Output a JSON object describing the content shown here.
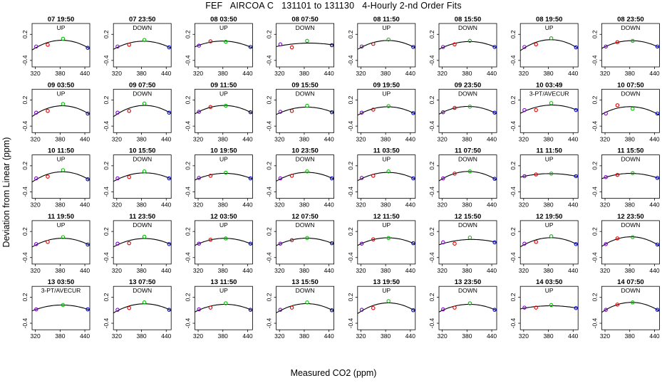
{
  "title": "FEF   AIRCOA C   131101 to 131130   4-Hourly 2-nd Order Fits",
  "xlabel": "Measured CO2 (ppm)",
  "ylabel": "Deviation from Linear (ppm)",
  "colors": {
    "point_low": "#7a00c8",
    "point_mid": "#e00000",
    "point_hi": "#00c000",
    "point_top": "#0000c8",
    "curve": "#000000"
  },
  "chart_data": {
    "type": "scatter",
    "layout": "5x8 small multiples",
    "xlim": [
      312,
      452
    ],
    "ylim": [
      -0.55,
      0.45
    ],
    "xticks": [
      320,
      380,
      440
    ],
    "yticks": [
      -0.4,
      0.2
    ],
    "panels": [
      {
        "title": "07 19:50",
        "label": "UP",
        "points": [
          [
            322,
            -0.08
          ],
          [
            350,
            -0.04
          ],
          [
            387,
            0.1
          ],
          [
            447,
            -0.11
          ]
        ]
      },
      {
        "title": "07 23:50",
        "label": "DOWN",
        "points": [
          [
            322,
            -0.08
          ],
          [
            350,
            -0.04
          ],
          [
            387,
            0.07
          ],
          [
            447,
            -0.1
          ]
        ]
      },
      {
        "title": "08 03:50",
        "label": "UP",
        "points": [
          [
            322,
            -0.06
          ],
          [
            350,
            0.04
          ],
          [
            387,
            0.03
          ],
          [
            447,
            -0.09
          ]
        ]
      },
      {
        "title": "08 07:50",
        "label": "DOWN",
        "points": [
          [
            322,
            -0.03
          ],
          [
            350,
            -0.1
          ],
          [
            387,
            0.05
          ],
          [
            447,
            -0.05
          ]
        ]
      },
      {
        "title": "08 11:50",
        "label": "UP",
        "points": [
          [
            322,
            -0.08
          ],
          [
            350,
            -0.02
          ],
          [
            387,
            0.08
          ],
          [
            447,
            -0.09
          ]
        ]
      },
      {
        "title": "08 15:50",
        "label": "DOWN",
        "points": [
          [
            322,
            -0.09
          ],
          [
            350,
            -0.03
          ],
          [
            387,
            0.05
          ],
          [
            447,
            -0.09
          ]
        ]
      },
      {
        "title": "08 19:50",
        "label": "UP",
        "points": [
          [
            322,
            -0.09
          ],
          [
            350,
            -0.03
          ],
          [
            387,
            0.11
          ],
          [
            447,
            -0.1
          ]
        ]
      },
      {
        "title": "08 23:50",
        "label": "DOWN",
        "points": [
          [
            322,
            -0.08
          ],
          [
            350,
            0.02
          ],
          [
            387,
            0.05
          ],
          [
            447,
            -0.08
          ]
        ]
      },
      {
        "title": "09 03:50",
        "label": "UP",
        "points": [
          [
            322,
            -0.09
          ],
          [
            350,
            -0.05
          ],
          [
            387,
            0.11
          ],
          [
            447,
            -0.11
          ]
        ]
      },
      {
        "title": "09 07:50",
        "label": "DOWN",
        "points": [
          [
            322,
            -0.09
          ],
          [
            350,
            -0.05
          ],
          [
            387,
            0.12
          ],
          [
            447,
            -0.09
          ]
        ]
      },
      {
        "title": "09 11:50",
        "label": "UP",
        "points": [
          [
            322,
            -0.07
          ],
          [
            350,
            0.04
          ],
          [
            387,
            0.07
          ],
          [
            447,
            -0.08
          ]
        ]
      },
      {
        "title": "09 15:50",
        "label": "DOWN",
        "points": [
          [
            322,
            -0.07
          ],
          [
            350,
            -0.05
          ],
          [
            387,
            0.07
          ],
          [
            447,
            -0.08
          ]
        ]
      },
      {
        "title": "09 19:50",
        "label": "UP",
        "points": [
          [
            322,
            -0.09
          ],
          [
            350,
            -0.02
          ],
          [
            387,
            0.06
          ],
          [
            447,
            -0.1
          ]
        ]
      },
      {
        "title": "09 23:50",
        "label": "DOWN",
        "points": [
          [
            322,
            -0.08
          ],
          [
            350,
            0.02
          ],
          [
            387,
            0.05
          ],
          [
            447,
            -0.09
          ]
        ]
      },
      {
        "title": "10 03:49",
        "label": "3-PT/AVECUR",
        "points": [
          [
            322,
            -0.03
          ],
          [
            350,
            -0.03
          ],
          [
            387,
            0.13
          ],
          [
            447,
            -0.03
          ]
        ]
      },
      {
        "title": "10 07:50",
        "label": "DOWN",
        "points": [
          [
            322,
            -0.11
          ],
          [
            350,
            0.08
          ],
          [
            387,
            0.0
          ],
          [
            447,
            -0.11
          ]
        ]
      },
      {
        "title": "10 11:50",
        "label": "UP",
        "points": [
          [
            322,
            -0.09
          ],
          [
            350,
            -0.05
          ],
          [
            387,
            0.1
          ],
          [
            447,
            -0.11
          ]
        ]
      },
      {
        "title": "10 15:50",
        "label": "DOWN",
        "points": [
          [
            322,
            -0.09
          ],
          [
            350,
            -0.06
          ],
          [
            387,
            0.07
          ],
          [
            447,
            -0.09
          ]
        ]
      },
      {
        "title": "10 19:50",
        "label": "UP",
        "points": [
          [
            322,
            -0.08
          ],
          [
            350,
            -0.03
          ],
          [
            387,
            0.04
          ],
          [
            447,
            -0.09
          ]
        ]
      },
      {
        "title": "10 23:50",
        "label": "DOWN",
        "points": [
          [
            322,
            -0.09
          ],
          [
            350,
            -0.03
          ],
          [
            387,
            0.07
          ],
          [
            447,
            -0.09
          ]
        ]
      },
      {
        "title": "11 03:50",
        "label": "UP",
        "points": [
          [
            322,
            -0.08
          ],
          [
            350,
            -0.03
          ],
          [
            387,
            0.07
          ],
          [
            447,
            -0.09
          ]
        ]
      },
      {
        "title": "11 07:50",
        "label": "DOWN",
        "points": [
          [
            322,
            -0.09
          ],
          [
            350,
            0.02
          ],
          [
            387,
            0.07
          ],
          [
            447,
            -0.1
          ]
        ]
      },
      {
        "title": "11 11:50",
        "label": "UP",
        "points": [
          [
            322,
            -0.04
          ],
          [
            350,
            0.0
          ],
          [
            387,
            0.02
          ],
          [
            447,
            -0.04
          ]
        ]
      },
      {
        "title": "11 15:50",
        "label": "DOWN",
        "points": [
          [
            322,
            -0.06
          ],
          [
            350,
            -0.01
          ],
          [
            387,
            0.03
          ],
          [
            447,
            -0.08
          ]
        ]
      },
      {
        "title": "11 19:50",
        "label": "UP",
        "points": [
          [
            322,
            -0.09
          ],
          [
            350,
            -0.04
          ],
          [
            387,
            0.07
          ],
          [
            447,
            -0.1
          ]
        ]
      },
      {
        "title": "11 23:50",
        "label": "DOWN",
        "points": [
          [
            322,
            -0.08
          ],
          [
            350,
            -0.07
          ],
          [
            387,
            0.08
          ],
          [
            447,
            -0.09
          ]
        ]
      },
      {
        "title": "12 03:50",
        "label": "UP",
        "points": [
          [
            322,
            -0.08
          ],
          [
            350,
            0.01
          ],
          [
            387,
            0.04
          ],
          [
            447,
            -0.08
          ]
        ]
      },
      {
        "title": "12 07:50",
        "label": "DOWN",
        "points": [
          [
            322,
            -0.08
          ],
          [
            350,
            0.0
          ],
          [
            387,
            0.05
          ],
          [
            447,
            -0.07
          ]
        ]
      },
      {
        "title": "12 11:50",
        "label": "UP",
        "points": [
          [
            322,
            -0.08
          ],
          [
            350,
            0.02
          ],
          [
            387,
            0.05
          ],
          [
            447,
            -0.07
          ]
        ]
      },
      {
        "title": "12 15:50",
        "label": "DOWN",
        "points": [
          [
            322,
            -0.05
          ],
          [
            350,
            -0.08
          ],
          [
            387,
            0.06
          ],
          [
            447,
            -0.05
          ]
        ]
      },
      {
        "title": "12 19:50",
        "label": "UP",
        "points": [
          [
            322,
            -0.08
          ],
          [
            350,
            -0.04
          ],
          [
            387,
            0.09
          ],
          [
            447,
            -0.09
          ]
        ]
      },
      {
        "title": "12 23:50",
        "label": "DOWN",
        "points": [
          [
            322,
            -0.09
          ],
          [
            350,
            0.04
          ],
          [
            387,
            0.07
          ],
          [
            447,
            -0.1
          ]
        ]
      },
      {
        "title": "13 03:50",
        "label": "3-PT/AVECUR",
        "points": [
          [
            322,
            -0.08
          ],
          [
            387,
            0.02
          ],
          [
            447,
            -0.08
          ]
        ]
      },
      {
        "title": "13 07:50",
        "label": "DOWN",
        "points": [
          [
            322,
            -0.09
          ],
          [
            350,
            -0.05
          ],
          [
            387,
            0.08
          ],
          [
            447,
            -0.09
          ]
        ]
      },
      {
        "title": "13 11:50",
        "label": "UP",
        "points": [
          [
            322,
            -0.08
          ],
          [
            350,
            -0.04
          ],
          [
            387,
            0.06
          ],
          [
            447,
            -0.09
          ]
        ]
      },
      {
        "title": "13 15:50",
        "label": "DOWN",
        "points": [
          [
            322,
            -0.09
          ],
          [
            350,
            -0.04
          ],
          [
            387,
            0.08
          ],
          [
            447,
            -0.1
          ]
        ]
      },
      {
        "title": "13 19:50",
        "label": "UP",
        "points": [
          [
            322,
            -0.09
          ],
          [
            350,
            -0.05
          ],
          [
            387,
            0.11
          ],
          [
            447,
            -0.1
          ]
        ]
      },
      {
        "title": "13 23:50",
        "label": "DOWN",
        "points": [
          [
            322,
            -0.08
          ],
          [
            350,
            -0.04
          ],
          [
            387,
            0.06
          ],
          [
            447,
            -0.09
          ]
        ]
      },
      {
        "title": "14 03:50",
        "label": "UP",
        "points": [
          [
            322,
            -0.04
          ],
          [
            350,
            -0.04
          ],
          [
            387,
            0.02
          ],
          [
            447,
            -0.05
          ]
        ]
      },
      {
        "title": "14 07:50",
        "label": "DOWN",
        "points": [
          [
            322,
            -0.09
          ],
          [
            350,
            0.03
          ],
          [
            387,
            0.08
          ],
          [
            447,
            -0.09
          ]
        ]
      }
    ]
  }
}
